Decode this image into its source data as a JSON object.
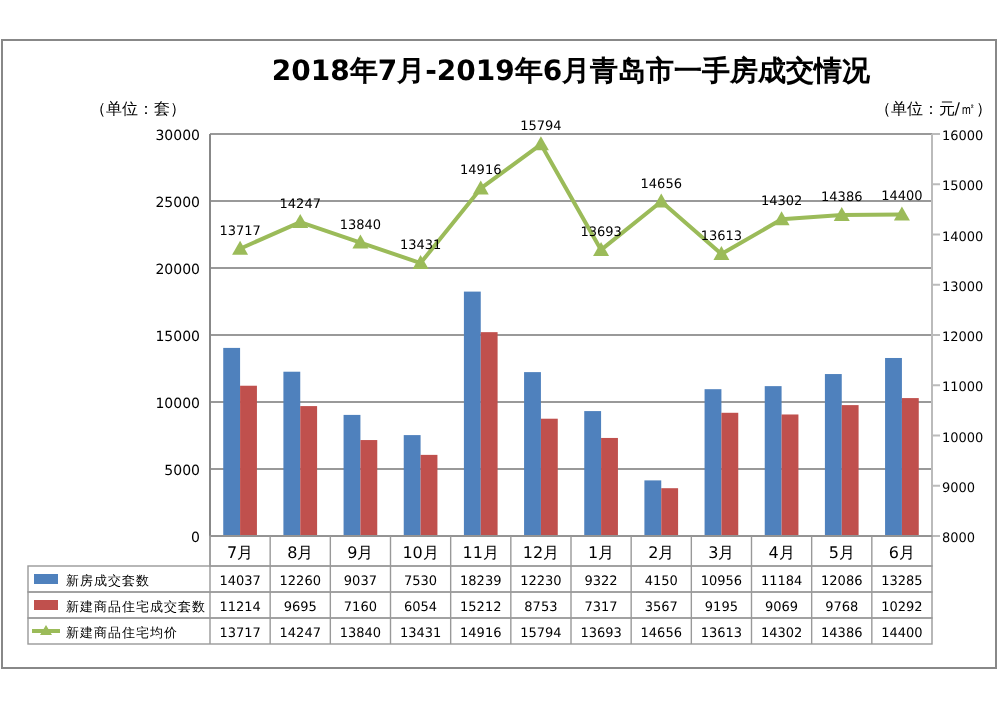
{
  "chart_data": {
    "type": "bar",
    "title": "2018年7月-2019年6月青岛市一手房成交情况",
    "ylabel": "（单位：套）",
    "y2label": "（单位：元/㎡）",
    "categories": [
      "7月",
      "8月",
      "9月",
      "10月",
      "11月",
      "12月",
      "1月",
      "2月",
      "3月",
      "4月",
      "5月",
      "6月"
    ],
    "series": [
      {
        "name": "新房成交套数",
        "color": "#4f81bd",
        "values": [
          14037,
          12260,
          9037,
          7530,
          18239,
          12230,
          9322,
          4150,
          10956,
          11184,
          12086,
          13285
        ]
      },
      {
        "name": "新建商品住宅成交套数",
        "color": "#c0504d",
        "values": [
          11214,
          9695,
          7160,
          6054,
          15212,
          8753,
          7317,
          3567,
          9195,
          9069,
          9768,
          10292
        ]
      },
      {
        "name": "新建商品住宅均价",
        "type": "line",
        "axis": "y2",
        "marker": "triangle",
        "color": "#9bbb59",
        "values": [
          13717,
          14247,
          13840,
          13431,
          14916,
          15794,
          13693,
          14656,
          13613,
          14302,
          14386,
          14400
        ],
        "value_labels": [
          "13717",
          "14247",
          "13840",
          "13431",
          "14916",
          "15794",
          "13693",
          "14656",
          "13613",
          "14302",
          "14386",
          "14400"
        ]
      }
    ],
    "ylim": [
      0,
      30000
    ],
    "yticks": [
      0,
      5000,
      10000,
      15000,
      20000,
      25000,
      30000
    ],
    "y2lim": [
      8000,
      16000
    ],
    "y2ticks": [
      8000,
      9000,
      10000,
      11000,
      12000,
      13000,
      14000,
      15000,
      16000
    ],
    "grid": "y",
    "legend": "bottom",
    "data_labels": true
  }
}
